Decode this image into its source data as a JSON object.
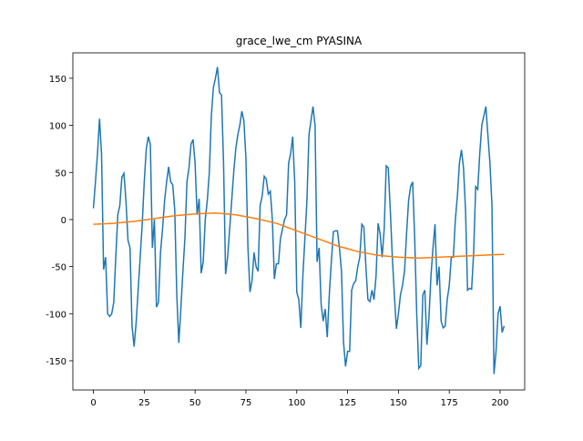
{
  "chart_data": {
    "type": "line",
    "title": "grace_lwe_cm PYASINA",
    "series": [
      {
        "color": "#1f77b4",
        "x": [
          0,
          1,
          2,
          3,
          4,
          5,
          6,
          7,
          8,
          9,
          10,
          11,
          12,
          13,
          14,
          15,
          16,
          17,
          18,
          19,
          20,
          21,
          22,
          23,
          24,
          25,
          26,
          27,
          28,
          29,
          30,
          31,
          32,
          33,
          34,
          35,
          36,
          37,
          38,
          39,
          40,
          41,
          42,
          43,
          44,
          45,
          46,
          47,
          48,
          49,
          50,
          51,
          52,
          53,
          54,
          55,
          56,
          57,
          58,
          59,
          60,
          61,
          62,
          63,
          64,
          65,
          66,
          67,
          68,
          69,
          70,
          71,
          72,
          73,
          74,
          75,
          76,
          77,
          78,
          79,
          80,
          81,
          82,
          83,
          84,
          85,
          86,
          87,
          88,
          89,
          90,
          91,
          92,
          93,
          94,
          95,
          96,
          97,
          98,
          99,
          100,
          101,
          102,
          103,
          104,
          105,
          106,
          107,
          108,
          109,
          110,
          111,
          112,
          113,
          114,
          115,
          116,
          117,
          118,
          119,
          120,
          121,
          122,
          123,
          124,
          125,
          126,
          127,
          128,
          129,
          130,
          131,
          132,
          133,
          134,
          135,
          136,
          137,
          138,
          139,
          140,
          141,
          142,
          143,
          144,
          145,
          146,
          147,
          148,
          149,
          150,
          151,
          152,
          153,
          154,
          155,
          156,
          157,
          158,
          159,
          160,
          161,
          162,
          163,
          164,
          165,
          166,
          167,
          168,
          169,
          170,
          171,
          172,
          173,
          174,
          175,
          176,
          177,
          178,
          179,
          180,
          181,
          182,
          183,
          184,
          185,
          186,
          187,
          188,
          189,
          190,
          191,
          192,
          193,
          194,
          195,
          196,
          197,
          198,
          199,
          200,
          201,
          202
        ],
        "values": [
          12,
          40,
          70,
          107,
          70,
          -53,
          -40,
          -100,
          -103,
          -100,
          -88,
          -40,
          5,
          15,
          45,
          49,
          20,
          -22,
          -30,
          -113,
          -135,
          -110,
          -75,
          -40,
          -5,
          40,
          75,
          88,
          80,
          -30,
          0,
          -93,
          -88,
          -35,
          -10,
          20,
          40,
          56,
          40,
          37,
          10,
          -80,
          -131,
          -95,
          -55,
          -20,
          40,
          55,
          80,
          85,
          60,
          5,
          22,
          -57,
          -45,
          0,
          20,
          50,
          110,
          140,
          150,
          162,
          135,
          132,
          60,
          -58,
          -40,
          -10,
          20,
          50,
          75,
          90,
          100,
          115,
          105,
          65,
          -30,
          -77,
          -65,
          -35,
          -50,
          -55,
          15,
          25,
          46,
          43,
          27,
          30,
          0,
          -63,
          -47,
          -47,
          -20,
          -10,
          0,
          5,
          60,
          70,
          88,
          40,
          -77,
          -85,
          -115,
          -60,
          -20,
          20,
          90,
          105,
          120,
          100,
          -45,
          -30,
          -90,
          -108,
          -95,
          -125,
          -80,
          -45,
          -13,
          -12,
          -12,
          -30,
          -55,
          -130,
          -156,
          -140,
          -140,
          -75,
          -68,
          -65,
          -50,
          -40,
          -5,
          -8,
          -50,
          -85,
          -87,
          -75,
          -85,
          -60,
          -4,
          -15,
          -40,
          -10,
          57,
          55,
          10,
          -40,
          -80,
          -116,
          -100,
          -80,
          -70,
          -55,
          -15,
          20,
          35,
          40,
          -20,
          -100,
          -158,
          -155,
          -80,
          -75,
          -133,
          -105,
          -60,
          -30,
          -5,
          -70,
          -50,
          -108,
          -115,
          -113,
          -85,
          -70,
          -40,
          -40,
          0,
          25,
          60,
          74,
          55,
          10,
          -75,
          -73,
          -74,
          -35,
          35,
          32,
          70,
          100,
          110,
          120,
          90,
          60,
          15,
          -164,
          -140,
          -100,
          -92,
          -120,
          -113
        ]
      },
      {
        "color": "#ff7f0e",
        "x": [
          0,
          10,
          20,
          30,
          40,
          50,
          60,
          70,
          80,
          90,
          100,
          110,
          120,
          130,
          140,
          150,
          160,
          170,
          180,
          190,
          202
        ],
        "values": [
          -5,
          -4,
          -2,
          1,
          4,
          6,
          7,
          5,
          1,
          -4,
          -12,
          -20,
          -28,
          -34,
          -38,
          -40,
          -41,
          -40,
          -39,
          -38,
          -37
        ]
      }
    ],
    "xlim": [
      -10.1,
      212.1
    ],
    "xticks": [
      0,
      25,
      50,
      75,
      100,
      125,
      150,
      175,
      200
    ],
    "ylim": [
      -181,
      177
    ],
    "yticks": [
      -150,
      -100,
      -50,
      0,
      50,
      100,
      150
    ]
  }
}
